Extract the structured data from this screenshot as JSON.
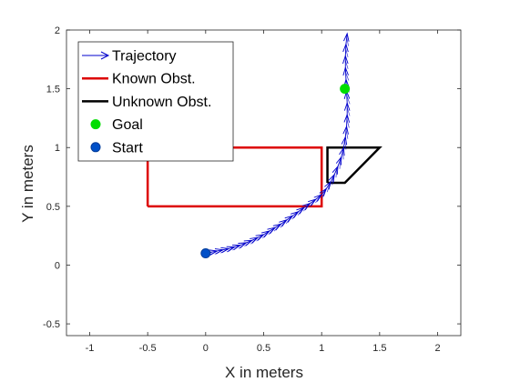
{
  "chart_data": {
    "type": "scatter",
    "xlabel": "X in meters",
    "ylabel": "Y in meters",
    "xlim": [
      -1.2,
      2.2
    ],
    "ylim": [
      -0.6,
      2.0
    ],
    "xticks": [
      -1,
      -0.5,
      0,
      0.5,
      1,
      1.5,
      2
    ],
    "yticks": [
      -0.5,
      0,
      0.5,
      1,
      1.5,
      2
    ],
    "xtick_labels": [
      "-1",
      "-0.5",
      "0",
      "0.5",
      "1",
      "1.5",
      "2"
    ],
    "ytick_labels": [
      "-0.5",
      "0",
      "0.5",
      "1",
      "1.5",
      "2"
    ],
    "grid": false,
    "legend_position": "top-left",
    "series": [
      {
        "name": "Trajectory",
        "kind": "quiver",
        "color": "#0000cc",
        "points": [
          [
            0.0,
            0.1
          ],
          [
            0.05,
            0.11
          ],
          [
            0.1,
            0.12
          ],
          [
            0.15,
            0.13
          ],
          [
            0.2,
            0.14
          ],
          [
            0.25,
            0.155
          ],
          [
            0.3,
            0.17
          ],
          [
            0.35,
            0.19
          ],
          [
            0.4,
            0.21
          ],
          [
            0.45,
            0.235
          ],
          [
            0.5,
            0.26
          ],
          [
            0.55,
            0.29
          ],
          [
            0.6,
            0.32
          ],
          [
            0.65,
            0.35
          ],
          [
            0.7,
            0.385
          ],
          [
            0.75,
            0.42
          ],
          [
            0.8,
            0.455
          ],
          [
            0.85,
            0.49
          ],
          [
            0.9,
            0.525
          ],
          [
            0.95,
            0.56
          ],
          [
            1.0,
            0.6
          ],
          [
            1.04,
            0.65
          ],
          [
            1.08,
            0.71
          ],
          [
            1.11,
            0.77
          ],
          [
            1.14,
            0.84
          ],
          [
            1.17,
            0.92
          ],
          [
            1.19,
            1.0
          ],
          [
            1.205,
            1.09
          ],
          [
            1.215,
            1.18
          ],
          [
            1.22,
            1.28
          ],
          [
            1.22,
            1.38
          ],
          [
            1.215,
            1.48
          ],
          [
            1.21,
            1.58
          ],
          [
            1.205,
            1.68
          ],
          [
            1.205,
            1.78
          ],
          [
            1.21,
            1.88
          ],
          [
            1.22,
            1.97
          ]
        ]
      },
      {
        "name": "Known Obst.",
        "kind": "polygon",
        "color": "#dd0000",
        "points": [
          [
            -0.5,
            0.5
          ],
          [
            1.0,
            0.5
          ],
          [
            1.0,
            1.0
          ],
          [
            -0.5,
            1.0
          ],
          [
            -0.5,
            0.5
          ]
        ]
      },
      {
        "name": "Unknown Obst.",
        "kind": "polygon",
        "color": "#000000",
        "points": [
          [
            1.05,
            0.7
          ],
          [
            1.2,
            0.7
          ],
          [
            1.5,
            1.0
          ],
          [
            1.05,
            1.0
          ],
          [
            1.05,
            0.7
          ]
        ]
      },
      {
        "name": "Goal",
        "kind": "point",
        "color": "#00dd00",
        "points": [
          [
            1.2,
            1.5
          ]
        ]
      },
      {
        "name": "Start",
        "kind": "point",
        "color": "#0050c8",
        "points": [
          [
            0.0,
            0.1
          ]
        ]
      }
    ]
  }
}
